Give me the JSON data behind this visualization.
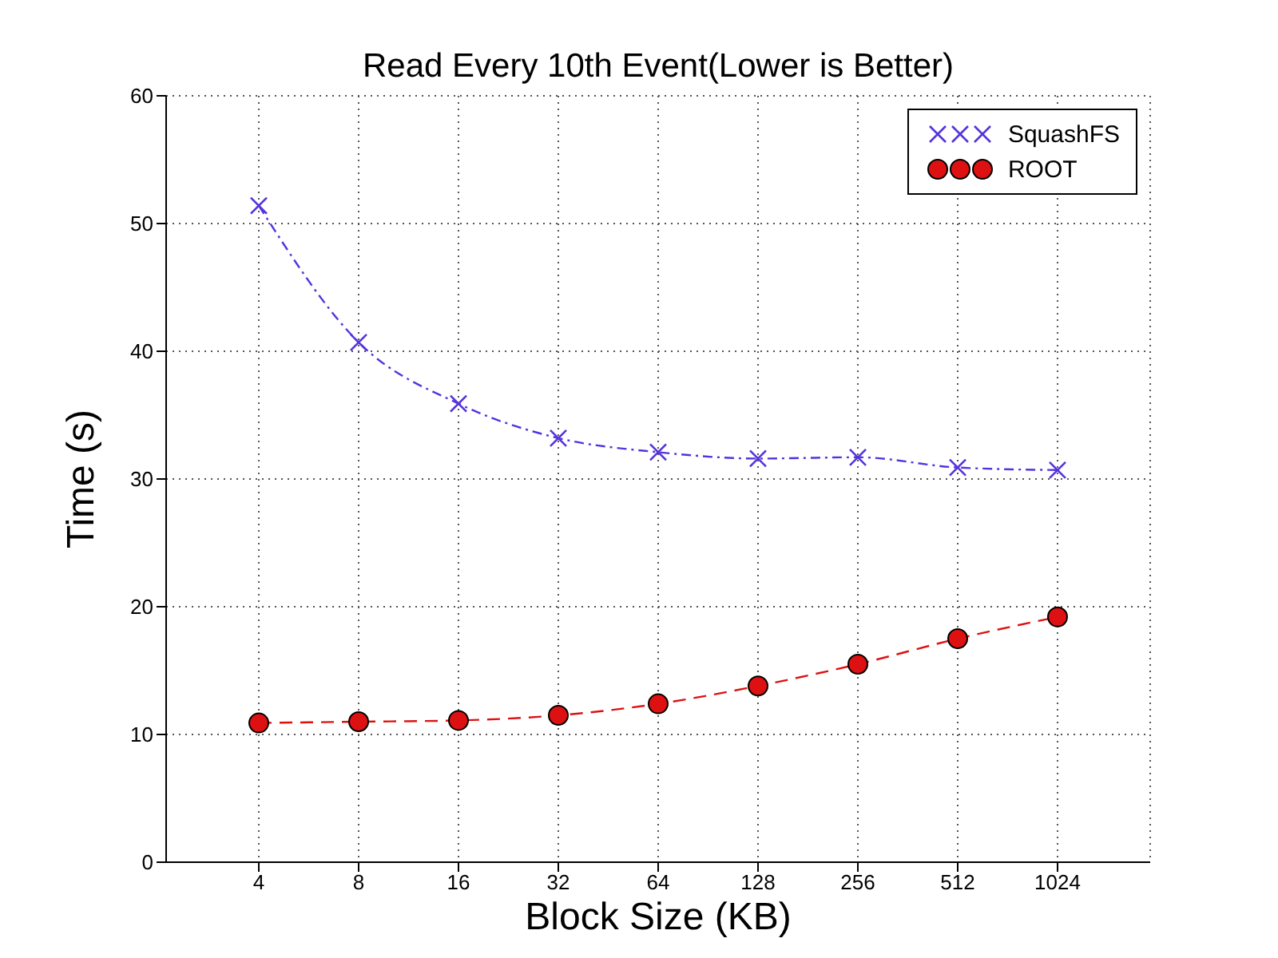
{
  "chart_data": {
    "type": "line",
    "title": "Read Every 10th Event(Lower is Better)",
    "xlabel": "Block Size (KB)",
    "ylabel": "Time (s)",
    "categories": [
      "4",
      "8",
      "16",
      "32",
      "64",
      "128",
      "256",
      "512",
      "1024"
    ],
    "series": [
      {
        "name": "SquashFS",
        "color": "#5533dd",
        "marker": "cross",
        "line_style": "dashdot",
        "values": [
          51.4,
          40.7,
          35.9,
          33.2,
          32.1,
          31.6,
          31.7,
          30.9,
          30.7
        ]
      },
      {
        "name": "ROOT",
        "color": "#dd1111",
        "marker": "circle",
        "line_style": "dashed",
        "values": [
          10.9,
          11.0,
          11.1,
          11.5,
          12.4,
          13.8,
          15.5,
          17.5,
          19.2
        ]
      }
    ],
    "ylim": [
      0,
      60
    ],
    "yticks": [
      0,
      10,
      20,
      30,
      40,
      50,
      60
    ],
    "grid": true,
    "legend": "top right"
  }
}
